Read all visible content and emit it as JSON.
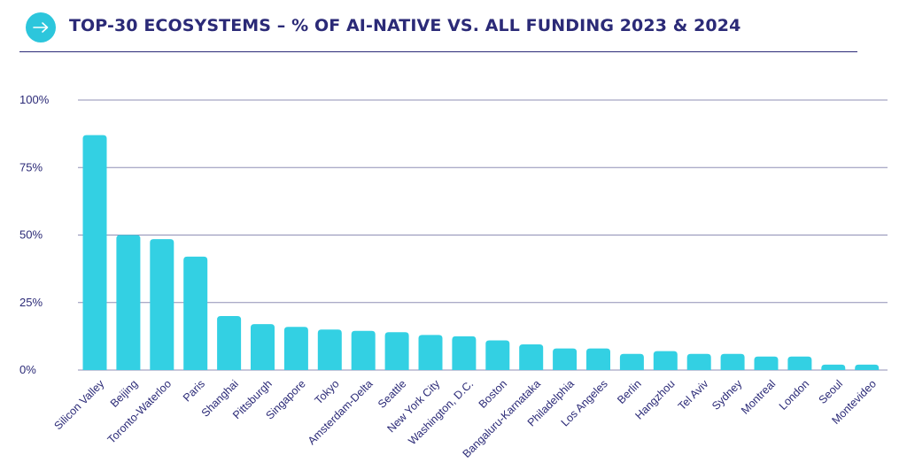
{
  "header": {
    "title": "TOP-30 ECOSYSTEMS – % OF AI-NATIVE VS. ALL FUNDING 2023 & 2024",
    "icon": "arrow-right-icon",
    "accent_color": "#2cc6dc",
    "title_color": "#2b2a77"
  },
  "chart_data": {
    "type": "bar",
    "title": "TOP-30 ECOSYSTEMS – % OF AI-NATIVE VS. ALL FUNDING 2023 & 2024",
    "xlabel": "",
    "ylabel": "",
    "ylim": [
      0,
      100
    ],
    "yticks": [
      0,
      25,
      50,
      75,
      100
    ],
    "ytick_labels": [
      "0%",
      "25%",
      "50%",
      "75%",
      "100%"
    ],
    "grid": true,
    "bar_color": "#33d0e3",
    "categories": [
      "Silicon Valley",
      "Beijing",
      "Toronto-Waterloo",
      "Paris",
      "Shanghai",
      "Pittsburgh",
      "Singapore",
      "Tokyo",
      "Amsterdam-Delta",
      "Seattle",
      "New York City",
      "Washington, D.C.",
      "Boston",
      "Bangaluru-Karnataka",
      "Philadelphia",
      "Los Angeles",
      "Berlin",
      "Hangzhou",
      "Tel Aviv",
      "Sydney",
      "Montreal",
      "London",
      "Seoul",
      "Montevideo"
    ],
    "values": [
      87,
      50,
      48.5,
      42,
      20,
      17,
      16,
      15,
      14.5,
      14,
      13,
      12.5,
      11,
      9.5,
      8,
      8,
      6,
      7,
      6,
      6,
      5,
      5,
      2,
      2
    ]
  }
}
